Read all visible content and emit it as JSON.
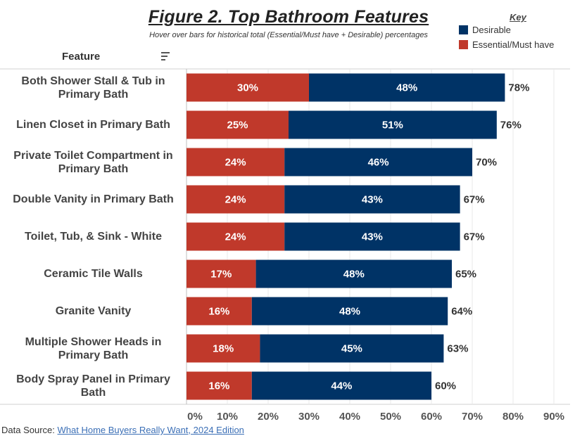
{
  "title": "Figure 2. Top Bathroom Features",
  "subtitle": "Hover over bars for historical total (Essential/Must have + Desirable) percentages",
  "legend": {
    "title": "Key",
    "items": [
      {
        "label": "Desirable",
        "color": "#003366"
      },
      {
        "label": "Essential/Must have",
        "color": "#c0392b"
      }
    ]
  },
  "feature_header": "Feature",
  "source": {
    "prefix": "Data Source: ",
    "link_text": "What Home Buyers Really Want, 2024 Edition"
  },
  "chart_data": {
    "type": "bar",
    "orientation": "horizontal",
    "stacked": true,
    "categories": [
      "Both Shower Stall & Tub in Primary Bath",
      "Linen Closet in Primary Bath",
      "Private Toilet Compartment in Primary Bath",
      "Double Vanity in Primary Bath",
      "Toilet, Tub, & Sink - White",
      "Ceramic Tile Walls",
      "Granite Vanity",
      "Multiple Shower Heads in Primary Bath",
      "Body Spray Panel in Primary Bath"
    ],
    "series": [
      {
        "name": "Essential/Must have",
        "color": "#c0392b",
        "values": [
          30,
          25,
          24,
          24,
          24,
          17,
          16,
          18,
          16
        ],
        "labels": [
          "30%",
          "25%",
          "24%",
          "24%",
          "24%",
          "17%",
          "16%",
          "18%",
          "16%"
        ]
      },
      {
        "name": "Desirable",
        "color": "#003366",
        "values": [
          48,
          51,
          46,
          43,
          43,
          48,
          48,
          45,
          44
        ],
        "labels": [
          "48%",
          "51%",
          "46%",
          "43%",
          "43%",
          "48%",
          "48%",
          "45%",
          "44%"
        ]
      }
    ],
    "totals": [
      "78%",
      "76%",
      "70%",
      "67%",
      "67%",
      "65%",
      "64%",
      "63%",
      "60%"
    ],
    "total_values": [
      78,
      76,
      70,
      67,
      67,
      65,
      64,
      63,
      60
    ],
    "xlim": [
      0,
      90
    ],
    "xticks": [
      "0%",
      "10%",
      "20%",
      "30%",
      "40%",
      "50%",
      "60%",
      "70%",
      "80%",
      "90%"
    ],
    "grid": true
  }
}
